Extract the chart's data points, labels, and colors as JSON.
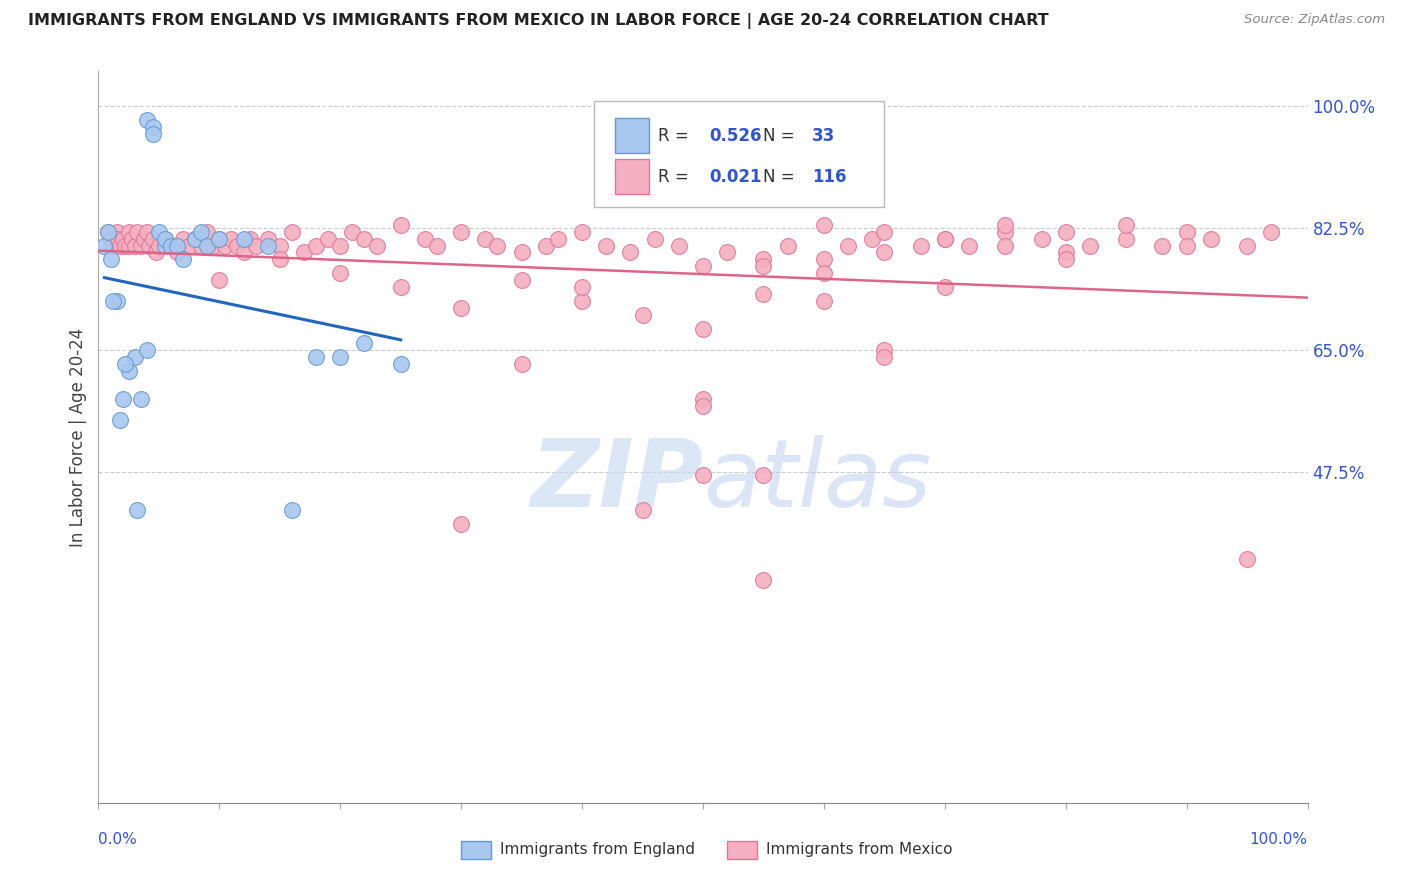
{
  "title": "IMMIGRANTS FROM ENGLAND VS IMMIGRANTS FROM MEXICO IN LABOR FORCE | AGE 20-24 CORRELATION CHART",
  "source": "Source: ZipAtlas.com",
  "ylabel": "In Labor Force | Age 20-24",
  "xlim": [
    0.0,
    1.0
  ],
  "ylim": [
    0.0,
    1.05
  ],
  "ytick_vals": [
    0.475,
    0.65,
    0.825,
    1.0
  ],
  "ytick_labels": [
    "47.5%",
    "65.0%",
    "82.5%",
    "100.0%"
  ],
  "england_color": "#a8c8f0",
  "england_edge": "#6699cc",
  "mexico_color": "#f4b0c0",
  "mexico_edge": "#dd7799",
  "line_england_color": "#2266bb",
  "line_mexico_color": "#dd6688",
  "watermark_color": "#c5d8f0",
  "title_color": "#222222",
  "source_color": "#888888",
  "label_color": "#3355cc",
  "england_label": "Immigrants from England",
  "mexico_label": "Immigrants from Mexico",
  "legend_england_R": "0.526",
  "legend_england_N": "33",
  "legend_mexico_R": "0.021",
  "legend_mexico_N": "116",
  "eng_x": [
    0.005,
    0.01,
    0.015,
    0.02,
    0.025,
    0.03,
    0.035,
    0.04,
    0.04,
    0.045,
    0.045,
    0.05,
    0.055,
    0.055,
    0.06,
    0.065,
    0.07,
    0.08,
    0.085,
    0.09,
    0.1,
    0.12,
    0.14,
    0.16,
    0.18,
    0.2,
    0.22,
    0.25,
    0.008,
    0.012,
    0.018,
    0.022,
    0.032
  ],
  "eng_y": [
    0.8,
    0.78,
    0.72,
    0.58,
    0.62,
    0.64,
    0.58,
    0.65,
    0.98,
    0.97,
    0.96,
    0.82,
    0.8,
    0.81,
    0.8,
    0.8,
    0.78,
    0.81,
    0.82,
    0.8,
    0.81,
    0.81,
    0.8,
    0.42,
    0.64,
    0.64,
    0.66,
    0.63,
    0.82,
    0.72,
    0.55,
    0.63,
    0.42
  ],
  "mex_x": [
    0.008,
    0.01,
    0.012,
    0.015,
    0.015,
    0.018,
    0.02,
    0.022,
    0.025,
    0.025,
    0.028,
    0.03,
    0.032,
    0.035,
    0.038,
    0.04,
    0.042,
    0.045,
    0.048,
    0.05,
    0.055,
    0.06,
    0.065,
    0.07,
    0.075,
    0.08,
    0.085,
    0.09,
    0.095,
    0.1,
    0.105,
    0.11,
    0.115,
    0.12,
    0.125,
    0.13,
    0.14,
    0.15,
    0.16,
    0.17,
    0.18,
    0.19,
    0.2,
    0.21,
    0.22,
    0.23,
    0.25,
    0.27,
    0.28,
    0.3,
    0.32,
    0.33,
    0.35,
    0.37,
    0.38,
    0.4,
    0.42,
    0.44,
    0.46,
    0.48,
    0.5,
    0.5,
    0.52,
    0.55,
    0.55,
    0.57,
    0.6,
    0.6,
    0.62,
    0.64,
    0.65,
    0.68,
    0.7,
    0.72,
    0.75,
    0.78,
    0.8,
    0.82,
    0.85,
    0.88,
    0.9,
    0.92,
    0.95,
    0.97,
    0.1,
    0.15,
    0.2,
    0.25,
    0.3,
    0.35,
    0.4,
    0.45,
    0.5,
    0.55,
    0.6,
    0.65,
    0.7,
    0.75,
    0.8,
    0.5,
    0.6,
    0.4,
    0.35,
    0.55,
    0.65,
    0.7,
    0.75,
    0.8,
    0.85,
    0.9,
    0.95,
    0.65,
    0.3,
    0.5,
    0.45,
    0.55
  ],
  "mex_y": [
    0.82,
    0.81,
    0.8,
    0.82,
    0.81,
    0.8,
    0.81,
    0.8,
    0.82,
    0.8,
    0.81,
    0.8,
    0.82,
    0.8,
    0.81,
    0.82,
    0.8,
    0.81,
    0.79,
    0.8,
    0.81,
    0.8,
    0.79,
    0.81,
    0.8,
    0.81,
    0.8,
    0.82,
    0.8,
    0.81,
    0.8,
    0.81,
    0.8,
    0.79,
    0.81,
    0.8,
    0.81,
    0.8,
    0.82,
    0.79,
    0.8,
    0.81,
    0.8,
    0.82,
    0.81,
    0.8,
    0.83,
    0.81,
    0.8,
    0.82,
    0.81,
    0.8,
    0.79,
    0.8,
    0.81,
    0.82,
    0.8,
    0.79,
    0.81,
    0.8,
    0.77,
    0.47,
    0.79,
    0.78,
    0.47,
    0.8,
    0.78,
    0.83,
    0.8,
    0.81,
    0.79,
    0.8,
    0.81,
    0.8,
    0.82,
    0.81,
    0.82,
    0.8,
    0.81,
    0.8,
    0.82,
    0.81,
    0.8,
    0.82,
    0.75,
    0.78,
    0.76,
    0.74,
    0.71,
    0.63,
    0.72,
    0.7,
    0.68,
    0.77,
    0.76,
    0.65,
    0.74,
    0.83,
    0.79,
    0.58,
    0.72,
    0.74,
    0.75,
    0.73,
    0.82,
    0.81,
    0.8,
    0.78,
    0.83,
    0.8,
    0.35,
    0.64,
    0.4,
    0.57,
    0.42,
    0.32
  ]
}
